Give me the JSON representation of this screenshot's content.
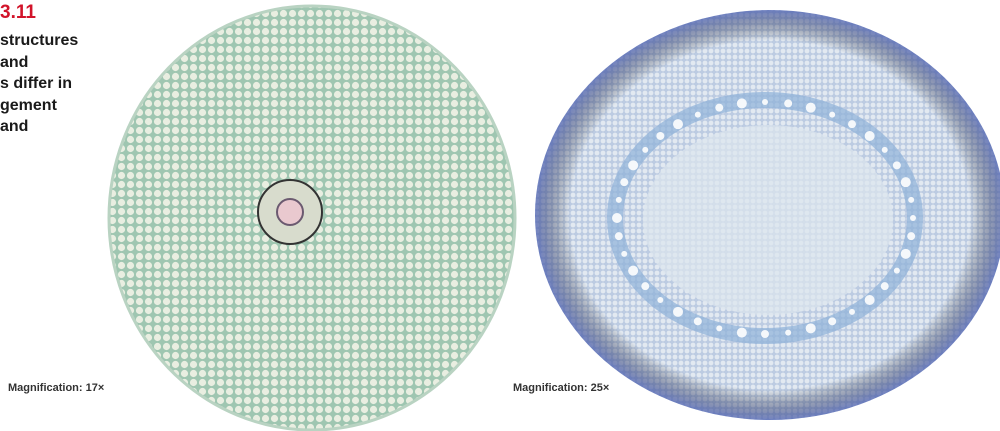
{
  "figure": {
    "number": "3.11",
    "caption_lines": [
      "structures",
      "and",
      "s differ in",
      "gement",
      "and"
    ]
  },
  "panels": [
    {
      "magnification": "Magnification: 17×"
    },
    {
      "magnification": "Magnification: 25×"
    }
  ]
}
